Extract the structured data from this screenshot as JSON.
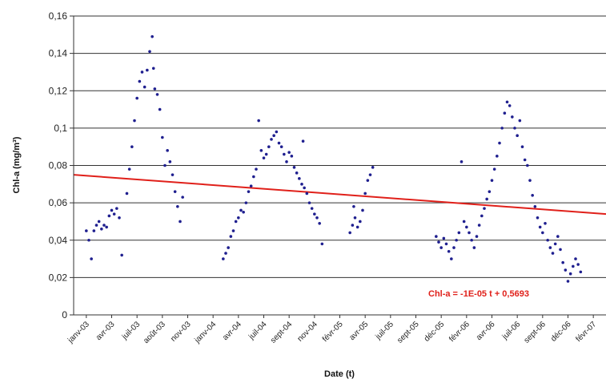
{
  "chart_data": {
    "type": "scatter",
    "xlabel": "Date (t)",
    "ylabel": "Chl-a (mg/m³)",
    "ylim": [
      0,
      0.16
    ],
    "y_ticks": [
      "0",
      "0,02",
      "0,04",
      "0,06",
      "0,08",
      "0,1",
      "0,12",
      "0,14",
      "0,16"
    ],
    "x_tick_labels": [
      "janv-03",
      "avr-03",
      "juil-03",
      "août-03",
      "nov-03",
      "janv-04",
      "avr-04",
      "juil-04",
      "sept-04",
      "nov-04",
      "févr-05",
      "avr-05",
      "juil-05",
      "sept-05",
      "déc-05",
      "févr-06",
      "avr-06",
      "juil-06",
      "sept-06",
      "déc-06",
      "févr-07"
    ],
    "grid": true,
    "point_color": "#1f1f8f",
    "trend_color": "#e0201a",
    "trend_start": 0.075,
    "trend_end": 0.054,
    "equation": "Chl-a = -1E-05 t + 0,5693",
    "series_points": [
      [
        0.0,
        0.045
      ],
      [
        0.1,
        0.04
      ],
      [
        0.2,
        0.03
      ],
      [
        0.3,
        0.045
      ],
      [
        0.4,
        0.048
      ],
      [
        0.5,
        0.05
      ],
      [
        0.6,
        0.046
      ],
      [
        0.7,
        0.048
      ],
      [
        0.8,
        0.047
      ],
      [
        0.9,
        0.053
      ],
      [
        1.0,
        0.056
      ],
      [
        1.1,
        0.054
      ],
      [
        1.2,
        0.057
      ],
      [
        1.3,
        0.052
      ],
      [
        1.4,
        0.032
      ],
      [
        1.6,
        0.065
      ],
      [
        1.7,
        0.078
      ],
      [
        1.8,
        0.09
      ],
      [
        1.9,
        0.104
      ],
      [
        2.0,
        0.116
      ],
      [
        2.1,
        0.125
      ],
      [
        2.2,
        0.13
      ],
      [
        2.3,
        0.122
      ],
      [
        2.4,
        0.131
      ],
      [
        2.5,
        0.141
      ],
      [
        2.6,
        0.149
      ],
      [
        2.65,
        0.132
      ],
      [
        2.7,
        0.121
      ],
      [
        2.8,
        0.118
      ],
      [
        2.9,
        0.11
      ],
      [
        3.0,
        0.095
      ],
      [
        3.1,
        0.08
      ],
      [
        3.2,
        0.088
      ],
      [
        3.3,
        0.082
      ],
      [
        3.4,
        0.075
      ],
      [
        3.5,
        0.066
      ],
      [
        3.6,
        0.058
      ],
      [
        3.7,
        0.05
      ],
      [
        3.8,
        0.063
      ],
      [
        5.4,
        0.03
      ],
      [
        5.5,
        0.033
      ],
      [
        5.6,
        0.036
      ],
      [
        5.7,
        0.042
      ],
      [
        5.8,
        0.045
      ],
      [
        5.9,
        0.05
      ],
      [
        6.0,
        0.052
      ],
      [
        6.1,
        0.056
      ],
      [
        6.2,
        0.055
      ],
      [
        6.3,
        0.06
      ],
      [
        6.4,
        0.066
      ],
      [
        6.5,
        0.069
      ],
      [
        6.6,
        0.074
      ],
      [
        6.7,
        0.078
      ],
      [
        6.8,
        0.104
      ],
      [
        6.9,
        0.088
      ],
      [
        7.0,
        0.084
      ],
      [
        7.1,
        0.086
      ],
      [
        7.2,
        0.09
      ],
      [
        7.3,
        0.094
      ],
      [
        7.4,
        0.096
      ],
      [
        7.5,
        0.098
      ],
      [
        7.6,
        0.092
      ],
      [
        7.7,
        0.09
      ],
      [
        7.8,
        0.086
      ],
      [
        7.9,
        0.082
      ],
      [
        8.0,
        0.087
      ],
      [
        8.1,
        0.085
      ],
      [
        8.2,
        0.079
      ],
      [
        8.3,
        0.076
      ],
      [
        8.4,
        0.073
      ],
      [
        8.5,
        0.07
      ],
      [
        8.55,
        0.093
      ],
      [
        8.6,
        0.068
      ],
      [
        8.7,
        0.065
      ],
      [
        8.8,
        0.06
      ],
      [
        8.9,
        0.057
      ],
      [
        9.0,
        0.054
      ],
      [
        9.1,
        0.052
      ],
      [
        9.2,
        0.049
      ],
      [
        9.3,
        0.038
      ],
      [
        10.4,
        0.044
      ],
      [
        10.5,
        0.048
      ],
      [
        10.55,
        0.058
      ],
      [
        10.6,
        0.052
      ],
      [
        10.7,
        0.047
      ],
      [
        10.8,
        0.05
      ],
      [
        10.9,
        0.056
      ],
      [
        11.0,
        0.065
      ],
      [
        11.1,
        0.072
      ],
      [
        11.2,
        0.075
      ],
      [
        11.3,
        0.079
      ],
      [
        13.8,
        0.042
      ],
      [
        13.9,
        0.039
      ],
      [
        14.0,
        0.036
      ],
      [
        14.1,
        0.041
      ],
      [
        14.2,
        0.038
      ],
      [
        14.3,
        0.034
      ],
      [
        14.4,
        0.03
      ],
      [
        14.5,
        0.036
      ],
      [
        14.6,
        0.04
      ],
      [
        14.7,
        0.044
      ],
      [
        14.8,
        0.082
      ],
      [
        14.9,
        0.05
      ],
      [
        15.0,
        0.047
      ],
      [
        15.1,
        0.044
      ],
      [
        15.2,
        0.04
      ],
      [
        15.3,
        0.036
      ],
      [
        15.4,
        0.042
      ],
      [
        15.5,
        0.048
      ],
      [
        15.6,
        0.053
      ],
      [
        15.7,
        0.057
      ],
      [
        15.8,
        0.062
      ],
      [
        15.9,
        0.066
      ],
      [
        16.0,
        0.072
      ],
      [
        16.1,
        0.078
      ],
      [
        16.2,
        0.085
      ],
      [
        16.3,
        0.092
      ],
      [
        16.4,
        0.1
      ],
      [
        16.5,
        0.108
      ],
      [
        16.6,
        0.114
      ],
      [
        16.7,
        0.112
      ],
      [
        16.8,
        0.106
      ],
      [
        16.9,
        0.1
      ],
      [
        17.0,
        0.096
      ],
      [
        17.1,
        0.104
      ],
      [
        17.2,
        0.09
      ],
      [
        17.3,
        0.083
      ],
      [
        17.4,
        0.08
      ],
      [
        17.5,
        0.072
      ],
      [
        17.6,
        0.064
      ],
      [
        17.7,
        0.058
      ],
      [
        17.8,
        0.052
      ],
      [
        17.9,
        0.047
      ],
      [
        18.0,
        0.044
      ],
      [
        18.1,
        0.049
      ],
      [
        18.2,
        0.04
      ],
      [
        18.3,
        0.036
      ],
      [
        18.4,
        0.033
      ],
      [
        18.5,
        0.038
      ],
      [
        18.6,
        0.042
      ],
      [
        18.7,
        0.035
      ],
      [
        18.8,
        0.028
      ],
      [
        18.9,
        0.024
      ],
      [
        19.0,
        0.018
      ],
      [
        19.1,
        0.022
      ],
      [
        19.2,
        0.026
      ],
      [
        19.3,
        0.03
      ],
      [
        19.4,
        0.027
      ],
      [
        19.5,
        0.023
      ]
    ]
  }
}
